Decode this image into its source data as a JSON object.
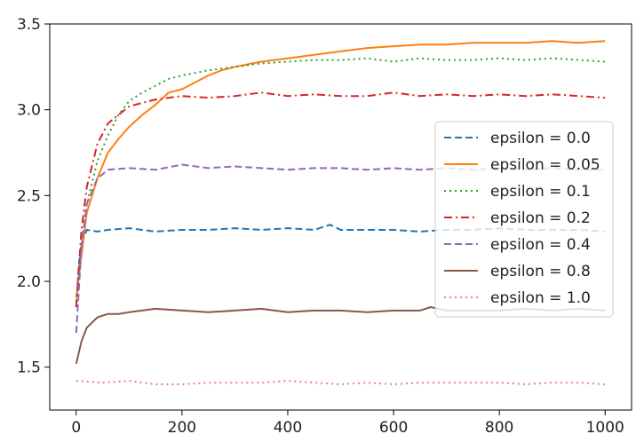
{
  "chart_data": {
    "type": "line",
    "title": "",
    "xlabel": "",
    "ylabel": "",
    "xlim": [
      -50,
      1050
    ],
    "ylim": [
      1.25,
      3.5
    ],
    "xticks": [
      "0",
      "200",
      "400",
      "600",
      "800",
      "1000"
    ],
    "yticks": [
      "1.5",
      "2.0",
      "2.5",
      "3.0",
      "3.5"
    ],
    "grid": false,
    "legend_position": "center-right",
    "series": [
      {
        "name": "epsilon = 0.0",
        "color": "#1f77b4",
        "dash": "dashed",
        "x": [
          0,
          5,
          10,
          20,
          40,
          60,
          100,
          150,
          200,
          250,
          300,
          350,
          400,
          450,
          480,
          500,
          550,
          600,
          650,
          700,
          750,
          800,
          850,
          900,
          950,
          1000
        ],
        "y": [
          1.85,
          2.1,
          2.22,
          2.3,
          2.29,
          2.3,
          2.31,
          2.29,
          2.3,
          2.3,
          2.31,
          2.3,
          2.31,
          2.3,
          2.33,
          2.3,
          2.3,
          2.3,
          2.29,
          2.3,
          2.3,
          2.31,
          2.3,
          2.3,
          2.3,
          2.29
        ]
      },
      {
        "name": "epsilon = 0.05",
        "color": "#ff7f0e",
        "dash": "solid",
        "x": [
          0,
          10,
          20,
          40,
          60,
          80,
          100,
          125,
          150,
          175,
          200,
          225,
          250,
          275,
          300,
          350,
          400,
          450,
          500,
          550,
          600,
          650,
          700,
          750,
          800,
          850,
          900,
          950,
          1000
        ],
        "y": [
          1.9,
          2.15,
          2.4,
          2.6,
          2.75,
          2.83,
          2.9,
          2.97,
          3.03,
          3.1,
          3.12,
          3.16,
          3.2,
          3.23,
          3.25,
          3.28,
          3.3,
          3.32,
          3.34,
          3.36,
          3.37,
          3.38,
          3.38,
          3.39,
          3.39,
          3.39,
          3.4,
          3.39,
          3.4
        ]
      },
      {
        "name": "epsilon = 0.1",
        "color": "#2ca02c",
        "dash": "dotted",
        "x": [
          0,
          10,
          20,
          40,
          60,
          80,
          100,
          125,
          150,
          175,
          200,
          250,
          300,
          350,
          400,
          450,
          500,
          550,
          600,
          650,
          700,
          750,
          800,
          850,
          900,
          950,
          1000
        ],
        "y": [
          1.85,
          2.2,
          2.45,
          2.7,
          2.85,
          2.97,
          3.05,
          3.1,
          3.14,
          3.18,
          3.2,
          3.23,
          3.25,
          3.27,
          3.28,
          3.29,
          3.29,
          3.3,
          3.28,
          3.3,
          3.29,
          3.29,
          3.3,
          3.29,
          3.3,
          3.29,
          3.28
        ]
      },
      {
        "name": "epsilon = 0.2",
        "color": "#d62728",
        "dash": "dashdot",
        "x": [
          0,
          10,
          20,
          40,
          60,
          80,
          100,
          150,
          200,
          250,
          300,
          350,
          400,
          450,
          500,
          550,
          600,
          650,
          700,
          750,
          800,
          850,
          900,
          950,
          1000
        ],
        "y": [
          1.85,
          2.3,
          2.55,
          2.8,
          2.92,
          2.97,
          3.02,
          3.06,
          3.08,
          3.07,
          3.08,
          3.1,
          3.08,
          3.09,
          3.08,
          3.08,
          3.1,
          3.08,
          3.09,
          3.08,
          3.09,
          3.08,
          3.09,
          3.08,
          3.07
        ]
      },
      {
        "name": "epsilon = 0.4",
        "color": "#9467bd",
        "dash": "dashed",
        "x": [
          0,
          10,
          20,
          40,
          60,
          100,
          150,
          200,
          250,
          300,
          350,
          400,
          450,
          500,
          550,
          600,
          650,
          700,
          750,
          800,
          850,
          900,
          950,
          1000
        ],
        "y": [
          1.7,
          2.2,
          2.45,
          2.6,
          2.65,
          2.66,
          2.65,
          2.68,
          2.66,
          2.67,
          2.66,
          2.65,
          2.66,
          2.66,
          2.65,
          2.66,
          2.65,
          2.66,
          2.65,
          2.66,
          2.65,
          2.66,
          2.65,
          2.65
        ]
      },
      {
        "name": "epsilon = 0.8",
        "color": "#8c564b",
        "dash": "solid",
        "x": [
          0,
          10,
          20,
          40,
          60,
          80,
          100,
          150,
          200,
          250,
          300,
          350,
          400,
          450,
          500,
          550,
          600,
          650,
          670,
          700,
          750,
          800,
          850,
          900,
          950,
          1000
        ],
        "y": [
          1.52,
          1.65,
          1.73,
          1.79,
          1.81,
          1.81,
          1.82,
          1.84,
          1.83,
          1.82,
          1.83,
          1.84,
          1.82,
          1.83,
          1.83,
          1.82,
          1.83,
          1.83,
          1.85,
          1.83,
          1.83,
          1.83,
          1.84,
          1.83,
          1.84,
          1.83
        ]
      },
      {
        "name": "epsilon = 1.0",
        "color": "#e377c2",
        "dash": "dotted",
        "x": [
          0,
          50,
          100,
          150,
          200,
          250,
          300,
          350,
          400,
          450,
          500,
          550,
          600,
          650,
          700,
          750,
          800,
          850,
          900,
          950,
          1000
        ],
        "y": [
          1.42,
          1.41,
          1.42,
          1.4,
          1.4,
          1.41,
          1.41,
          1.41,
          1.42,
          1.41,
          1.4,
          1.41,
          1.4,
          1.41,
          1.41,
          1.41,
          1.41,
          1.4,
          1.41,
          1.41,
          1.4
        ]
      }
    ]
  }
}
